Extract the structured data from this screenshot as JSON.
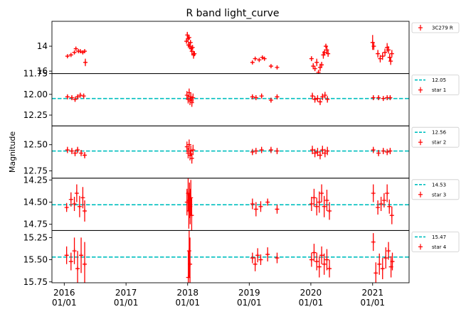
{
  "chart_data": {
    "type": "scatter",
    "title": "R band light_curve",
    "ylabel": "Magnitude",
    "xlim": [
      "2015-10-20",
      "2021-08-05"
    ],
    "x_ticks": [
      {
        "date": "2016-01-01",
        "label": "2016\n01/01"
      },
      {
        "date": "2017-01-01",
        "label": "2017\n01/01"
      },
      {
        "date": "2018-01-01",
        "label": "2018\n01/01"
      },
      {
        "date": "2019-01-01",
        "label": "2019\n01/01"
      },
      {
        "date": "2020-01-01",
        "label": "2020\n01/01"
      },
      {
        "date": "2021-01-01",
        "label": "2021\n01/01"
      }
    ],
    "marker_color": "#ff0000",
    "ref_color": "#00bfbf",
    "panels": [
      {
        "name": "3C279 R",
        "ylim": [
          16.2,
          12.0
        ],
        "ylim_inverted": true,
        "yticks": [
          {
            "v": 14,
            "label": "14"
          },
          {
            "v": 16,
            "label": "16"
          }
        ],
        "reference": null,
        "points": [
          [
            "2016-01-20",
            14.8,
            0.12
          ],
          [
            "2016-02-10",
            14.7,
            0.12
          ],
          [
            "2016-03-01",
            14.5,
            0.12
          ],
          [
            "2016-03-10",
            14.2,
            0.12
          ],
          [
            "2016-03-25",
            14.4,
            0.12
          ],
          [
            "2016-04-05",
            14.4,
            0.12
          ],
          [
            "2016-04-20",
            14.5,
            0.12
          ],
          [
            "2016-05-01",
            14.4,
            0.12
          ],
          [
            "2016-05-05",
            15.3,
            0.3
          ],
          [
            "2017-12-25",
            13.6,
            0.2
          ],
          [
            "2017-12-30",
            13.1,
            0.25
          ],
          [
            "2018-01-03",
            13.4,
            0.25
          ],
          [
            "2018-01-06",
            13.9,
            0.25
          ],
          [
            "2018-01-10",
            13.3,
            0.2
          ],
          [
            "2018-01-14",
            14.0,
            0.25
          ],
          [
            "2018-01-18",
            13.7,
            0.2
          ],
          [
            "2018-01-22",
            14.2,
            0.25
          ],
          [
            "2018-01-26",
            14.4,
            0.3
          ],
          [
            "2018-01-30",
            14.1,
            0.2
          ],
          [
            "2018-02-05",
            14.7,
            0.3
          ],
          [
            "2018-02-10",
            14.6,
            0.2
          ],
          [
            "2019-01-20",
            15.3,
            0.12
          ],
          [
            "2019-02-05",
            15.0,
            0.12
          ],
          [
            "2019-03-01",
            15.1,
            0.12
          ],
          [
            "2019-03-20",
            14.9,
            0.12
          ],
          [
            "2019-04-01",
            15.0,
            0.12
          ],
          [
            "2019-05-10",
            15.6,
            0.12
          ],
          [
            "2019-06-15",
            15.7,
            0.12
          ],
          [
            "2020-01-05",
            15.0,
            0.2
          ],
          [
            "2020-01-15",
            15.6,
            0.25
          ],
          [
            "2020-01-25",
            15.8,
            0.2
          ],
          [
            "2020-02-05",
            15.3,
            0.3
          ],
          [
            "2020-02-15",
            16.1,
            0.2
          ],
          [
            "2020-02-25",
            15.7,
            0.3
          ],
          [
            "2020-03-05",
            15.5,
            0.25
          ],
          [
            "2020-03-15",
            14.7,
            0.3
          ],
          [
            "2020-03-22",
            14.5,
            0.25
          ],
          [
            "2020-03-30",
            14.0,
            0.2
          ],
          [
            "2020-04-05",
            14.3,
            0.3
          ],
          [
            "2020-04-12",
            14.6,
            0.25
          ],
          [
            "2021-01-01",
            13.7,
            0.6
          ],
          [
            "2021-01-08",
            14.0,
            0.3
          ],
          [
            "2021-02-01",
            14.6,
            0.3
          ],
          [
            "2021-02-15",
            15.0,
            0.3
          ],
          [
            "2021-03-01",
            14.8,
            0.3
          ],
          [
            "2021-03-15",
            14.5,
            0.3
          ],
          [
            "2021-03-28",
            14.1,
            0.35
          ],
          [
            "2021-04-05",
            14.3,
            0.3
          ],
          [
            "2021-04-12",
            14.9,
            0.3
          ],
          [
            "2021-04-18",
            15.2,
            0.3
          ],
          [
            "2021-04-25",
            14.6,
            0.3
          ]
        ]
      },
      {
        "name": "star 1",
        "ylim": [
          12.38,
          11.75
        ],
        "ylim_inverted": true,
        "yticks": [
          {
            "v": 11.75,
            "label": "11.75"
          },
          {
            "v": 12.0,
            "label": "12.00"
          },
          {
            "v": 12.25,
            "label": "12.25"
          }
        ],
        "reference": {
          "value": 12.05,
          "label": "12.05"
        },
        "points": [
          [
            "2016-01-20",
            12.03,
            0.03
          ],
          [
            "2016-02-15",
            12.04,
            0.03
          ],
          [
            "2016-03-05",
            12.06,
            0.03
          ],
          [
            "2016-03-20",
            12.03,
            0.03
          ],
          [
            "2016-04-05",
            12.01,
            0.03
          ],
          [
            "2016-04-25",
            12.02,
            0.03
          ],
          [
            "2017-12-28",
            12.01,
            0.05
          ],
          [
            "2018-01-04",
            12.06,
            0.05
          ],
          [
            "2018-01-10",
            11.98,
            0.05
          ],
          [
            "2018-01-15",
            12.08,
            0.05
          ],
          [
            "2018-01-20",
            12.03,
            0.05
          ],
          [
            "2018-01-26",
            12.1,
            0.05
          ],
          [
            "2018-02-02",
            12.04,
            0.05
          ],
          [
            "2019-01-20",
            12.03,
            0.03
          ],
          [
            "2019-02-10",
            12.04,
            0.03
          ],
          [
            "2019-03-15",
            12.02,
            0.03
          ],
          [
            "2019-05-10",
            12.07,
            0.03
          ],
          [
            "2019-06-15",
            12.03,
            0.03
          ],
          [
            "2020-01-10",
            12.02,
            0.04
          ],
          [
            "2020-01-25",
            12.06,
            0.04
          ],
          [
            "2020-02-10",
            12.05,
            0.04
          ],
          [
            "2020-02-25",
            12.09,
            0.04
          ],
          [
            "2020-03-10",
            12.03,
            0.04
          ],
          [
            "2020-03-25",
            12.01,
            0.04
          ],
          [
            "2020-04-08",
            12.06,
            0.04
          ],
          [
            "2021-01-05",
            12.04,
            0.03
          ],
          [
            "2021-02-05",
            12.04,
            0.03
          ],
          [
            "2021-03-05",
            12.05,
            0.03
          ],
          [
            "2021-03-28",
            12.04,
            0.03
          ],
          [
            "2021-04-15",
            12.04,
            0.03
          ]
        ]
      },
      {
        "name": "star 2",
        "ylim": [
          12.82,
          12.32
        ],
        "ylim_inverted": true,
        "yticks": [
          {
            "v": 12.5,
            "label": "12.50"
          },
          {
            "v": 12.75,
            "label": "12.75"
          }
        ],
        "reference": {
          "value": 12.56,
          "label": "12.56"
        },
        "points": [
          [
            "2016-01-20",
            12.55,
            0.03
          ],
          [
            "2016-02-15",
            12.56,
            0.03
          ],
          [
            "2016-03-05",
            12.58,
            0.03
          ],
          [
            "2016-03-20",
            12.55,
            0.03
          ],
          [
            "2016-04-10",
            12.58,
            0.03
          ],
          [
            "2016-05-01",
            12.6,
            0.03
          ],
          [
            "2017-12-28",
            12.52,
            0.05
          ],
          [
            "2018-01-04",
            12.58,
            0.05
          ],
          [
            "2018-01-10",
            12.5,
            0.05
          ],
          [
            "2018-01-15",
            12.6,
            0.05
          ],
          [
            "2018-01-20",
            12.56,
            0.05
          ],
          [
            "2018-01-26",
            12.63,
            0.05
          ],
          [
            "2018-02-02",
            12.55,
            0.05
          ],
          [
            "2019-01-20",
            12.57,
            0.03
          ],
          [
            "2019-02-10",
            12.56,
            0.03
          ],
          [
            "2019-03-15",
            12.55,
            0.03
          ],
          [
            "2019-05-10",
            12.55,
            0.03
          ],
          [
            "2019-06-15",
            12.56,
            0.03
          ],
          [
            "2020-01-10",
            12.55,
            0.04
          ],
          [
            "2020-01-25",
            12.58,
            0.04
          ],
          [
            "2020-02-10",
            12.57,
            0.04
          ],
          [
            "2020-02-25",
            12.6,
            0.04
          ],
          [
            "2020-03-10",
            12.55,
            0.04
          ],
          [
            "2020-03-25",
            12.58,
            0.04
          ],
          [
            "2020-04-08",
            12.56,
            0.04
          ],
          [
            "2021-01-05",
            12.55,
            0.03
          ],
          [
            "2021-02-05",
            12.58,
            0.03
          ],
          [
            "2021-03-05",
            12.56,
            0.03
          ],
          [
            "2021-03-28",
            12.57,
            0.03
          ],
          [
            "2021-04-15",
            12.56,
            0.03
          ]
        ]
      },
      {
        "name": "star 3",
        "ylim": [
          14.82,
          14.23
        ],
        "ylim_inverted": true,
        "yticks": [
          {
            "v": 14.25,
            "label": "14.25"
          },
          {
            "v": 14.5,
            "label": "14.50"
          },
          {
            "v": 14.75,
            "label": "14.75"
          }
        ],
        "reference": {
          "value": 14.53,
          "label": "14.53"
        },
        "points": [
          [
            "2016-01-15",
            14.56,
            0.05
          ],
          [
            "2016-02-10",
            14.47,
            0.08
          ],
          [
            "2016-03-01",
            14.52,
            0.08
          ],
          [
            "2016-03-15",
            14.4,
            0.1
          ],
          [
            "2016-04-01",
            14.55,
            0.12
          ],
          [
            "2016-04-20",
            14.45,
            0.12
          ],
          [
            "2016-05-01",
            14.6,
            0.12
          ],
          [
            "2017-12-28",
            14.5,
            0.15
          ],
          [
            "2018-01-04",
            14.4,
            0.2
          ],
          [
            "2018-01-08",
            14.6,
            0.2
          ],
          [
            "2018-01-12",
            14.48,
            0.2
          ],
          [
            "2018-01-16",
            14.55,
            0.2
          ],
          [
            "2018-01-20",
            14.45,
            0.2
          ],
          [
            "2018-01-25",
            14.65,
            0.2
          ],
          [
            "2019-01-20",
            14.52,
            0.06
          ],
          [
            "2019-02-10",
            14.58,
            0.08
          ],
          [
            "2019-03-10",
            14.55,
            0.06
          ],
          [
            "2019-04-20",
            14.5,
            0.04
          ],
          [
            "2019-06-15",
            14.58,
            0.05
          ],
          [
            "2020-01-05",
            14.52,
            0.08
          ],
          [
            "2020-01-20",
            14.45,
            0.1
          ],
          [
            "2020-02-05",
            14.55,
            0.1
          ],
          [
            "2020-02-20",
            14.5,
            0.12
          ],
          [
            "2020-03-05",
            14.4,
            0.1
          ],
          [
            "2020-03-20",
            14.55,
            0.12
          ],
          [
            "2020-04-05",
            14.48,
            0.12
          ],
          [
            "2020-04-20",
            14.6,
            0.1
          ],
          [
            "2021-01-05",
            14.4,
            0.1
          ],
          [
            "2021-02-01",
            14.56,
            0.08
          ],
          [
            "2021-02-20",
            14.52,
            0.08
          ],
          [
            "2021-03-10",
            14.48,
            0.08
          ],
          [
            "2021-03-28",
            14.4,
            0.1
          ],
          [
            "2021-04-10",
            14.55,
            0.08
          ],
          [
            "2021-04-25",
            14.65,
            0.1
          ]
        ]
      },
      {
        "name": "star 4",
        "ylim": [
          15.76,
          15.17
        ],
        "ylim_inverted": true,
        "yticks": [
          {
            "v": 15.25,
            "label": "15.25"
          },
          {
            "v": 15.5,
            "label": "15.50"
          },
          {
            "v": 15.75,
            "label": "15.75"
          }
        ],
        "reference": {
          "value": 15.47,
          "label": "15.47"
        },
        "points": [
          [
            "2016-01-15",
            15.45,
            0.1
          ],
          [
            "2016-02-10",
            15.52,
            0.1
          ],
          [
            "2016-03-01",
            15.4,
            0.15
          ],
          [
            "2016-03-20",
            15.6,
            0.2
          ],
          [
            "2016-04-10",
            15.45,
            0.2
          ],
          [
            "2016-05-01",
            15.55,
            0.25
          ],
          [
            "2018-01-05",
            15.7,
            0.3
          ],
          [
            "2018-01-10",
            15.4,
            0.3
          ],
          [
            "2018-01-15",
            15.55,
            0.3
          ],
          [
            "2019-01-20",
            15.48,
            0.06
          ],
          [
            "2019-02-05",
            15.55,
            0.08
          ],
          [
            "2019-02-20",
            15.45,
            0.08
          ],
          [
            "2019-03-10",
            15.5,
            0.06
          ],
          [
            "2019-04-20",
            15.44,
            0.08
          ],
          [
            "2019-06-15",
            15.48,
            0.06
          ],
          [
            "2020-01-05",
            15.5,
            0.08
          ],
          [
            "2020-01-20",
            15.42,
            0.1
          ],
          [
            "2020-02-05",
            15.52,
            0.1
          ],
          [
            "2020-02-20",
            15.58,
            0.12
          ],
          [
            "2020-03-05",
            15.45,
            0.1
          ],
          [
            "2020-03-20",
            15.55,
            0.12
          ],
          [
            "2020-04-05",
            15.5,
            0.12
          ],
          [
            "2020-04-20",
            15.6,
            0.1
          ],
          [
            "2021-01-05",
            15.3,
            0.1
          ],
          [
            "2021-01-20",
            15.65,
            0.12
          ],
          [
            "2021-02-10",
            15.55,
            0.12
          ],
          [
            "2021-03-01",
            15.6,
            0.12
          ],
          [
            "2021-03-20",
            15.48,
            0.12
          ],
          [
            "2021-04-05",
            15.4,
            0.1
          ],
          [
            "2021-04-20",
            15.58,
            0.12
          ],
          [
            "2021-04-28",
            15.52,
            0.1
          ]
        ]
      }
    ]
  }
}
